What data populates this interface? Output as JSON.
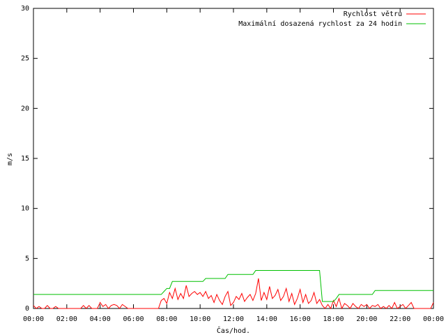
{
  "chart_data": {
    "type": "line",
    "xlabel": "Čas/hod.",
    "ylabel": "m/s",
    "x": [
      0,
      10,
      20,
      30,
      40,
      50,
      60,
      70,
      80,
      90,
      100,
      110,
      120,
      130,
      140,
      150,
      160,
      170,
      180,
      190,
      200,
      210,
      220,
      230,
      240,
      250,
      260,
      270,
      280,
      290,
      300,
      310,
      320,
      330,
      340,
      350,
      360,
      370,
      380,
      390,
      400,
      410,
      420,
      430,
      440,
      450,
      460,
      470,
      480,
      490,
      500,
      510,
      520,
      530,
      540,
      550,
      560,
      570,
      580,
      590,
      600,
      610,
      620,
      630,
      640,
      650,
      660,
      670,
      680,
      690,
      700,
      710,
      720,
      730,
      740,
      750,
      760,
      770,
      780,
      790,
      800,
      810,
      820,
      830,
      840,
      850,
      860,
      870,
      880,
      890,
      900,
      910,
      920,
      930,
      940,
      950,
      960,
      970,
      980,
      990,
      1000,
      1010,
      1020,
      1030,
      1040,
      1050,
      1060,
      1070,
      1080,
      1090,
      1100,
      1110,
      1120,
      1130,
      1140,
      1150,
      1160,
      1170,
      1180,
      1190,
      1200,
      1210,
      1220,
      1230,
      1240,
      1250,
      1260,
      1270,
      1280,
      1290,
      1300,
      1310,
      1320,
      1330,
      1340,
      1350,
      1360,
      1370,
      1380,
      1390,
      1400,
      1410,
      1420,
      1430,
      1440
    ],
    "series": [
      {
        "name": "Rychlost větru",
        "color": "#ff0000",
        "values": [
          0.3,
          0,
          0.2,
          0,
          0,
          0.3,
          0,
          0,
          0.2,
          0,
          0,
          0,
          0,
          0,
          0,
          0,
          0,
          0,
          0.3,
          0,
          0.3,
          0,
          0,
          0,
          0.6,
          0.2,
          0.4,
          0,
          0.3,
          0.4,
          0.3,
          0,
          0.4,
          0.2,
          0,
          0,
          0,
          0,
          0,
          0,
          0,
          0,
          0,
          0,
          0,
          0,
          0.8,
          1.0,
          0.5,
          1.6,
          1.0,
          2.0,
          0.9,
          1.5,
          1.0,
          2.3,
          1.2,
          1.5,
          1.7,
          1.4,
          1.6,
          1.2,
          1.7,
          1.0,
          1.3,
          0.6,
          1.4,
          0.8,
          0.4,
          1.2,
          1.7,
          0.3,
          0.6,
          1.2,
          0.9,
          1.5,
          0.7,
          1.1,
          1.4,
          0.8,
          1.5,
          3.0,
          0.8,
          1.6,
          0.9,
          2.2,
          1.0,
          1.3,
          1.9,
          0.8,
          1.2,
          2.0,
          0.7,
          1.5,
          0.4,
          1.0,
          1.9,
          0.6,
          1.4,
          0.5,
          0.8,
          1.6,
          0.5,
          0.9,
          0.3,
          0,
          0.4,
          0,
          0.8,
          0.2,
          1.0,
          0,
          0.5,
          0.3,
          0,
          0.5,
          0.2,
          0,
          0.4,
          0.2,
          0.4,
          0,
          0.3,
          0.2,
          0.4,
          0,
          0.2,
          0,
          0.3,
          0,
          0.6,
          0,
          0.2,
          0.4,
          0,
          0.3,
          0.6,
          0,
          0,
          0,
          0,
          0,
          0,
          0,
          0.6
        ]
      },
      {
        "name": "Maximální dosazená rychlost za 24 hodin",
        "color": "#00c000",
        "values": [
          1.4,
          1.4,
          1.4,
          1.4,
          1.4,
          1.4,
          1.4,
          1.4,
          1.4,
          1.4,
          1.4,
          1.4,
          1.4,
          1.4,
          1.4,
          1.4,
          1.4,
          1.4,
          1.4,
          1.4,
          1.4,
          1.4,
          1.4,
          1.4,
          1.4,
          1.4,
          1.4,
          1.4,
          1.4,
          1.4,
          1.4,
          1.4,
          1.4,
          1.4,
          1.4,
          1.4,
          1.4,
          1.4,
          1.4,
          1.4,
          1.4,
          1.4,
          1.4,
          1.4,
          1.4,
          1.4,
          1.4,
          1.7,
          2.0,
          2.0,
          2.7,
          2.7,
          2.7,
          2.7,
          2.7,
          2.7,
          2.7,
          2.7,
          2.7,
          2.7,
          2.7,
          2.7,
          3.0,
          3.0,
          3.0,
          3.0,
          3.0,
          3.0,
          3.0,
          3.0,
          3.4,
          3.4,
          3.4,
          3.4,
          3.4,
          3.4,
          3.4,
          3.4,
          3.4,
          3.4,
          3.8,
          3.8,
          3.8,
          3.8,
          3.8,
          3.8,
          3.8,
          3.8,
          3.8,
          3.8,
          3.8,
          3.8,
          3.8,
          3.8,
          3.8,
          3.8,
          3.8,
          3.8,
          3.8,
          3.8,
          3.8,
          3.8,
          3.8,
          3.8,
          0.7,
          0.7,
          0.7,
          0.7,
          0.7,
          1.0,
          1.4,
          1.4,
          1.4,
          1.4,
          1.4,
          1.4,
          1.4,
          1.4,
          1.4,
          1.4,
          1.4,
          1.4,
          1.4,
          1.8,
          1.8,
          1.8,
          1.8,
          1.8,
          1.8,
          1.8,
          1.8,
          1.8,
          1.8,
          1.8,
          1.8,
          1.8,
          1.8,
          1.8,
          1.8,
          1.8,
          1.8,
          1.8,
          1.8,
          1.8,
          1.8
        ]
      }
    ],
    "xlim": [
      0,
      1440
    ],
    "xticks": [
      {
        "value": 0,
        "label": "00:00"
      },
      {
        "value": 120,
        "label": "02:00"
      },
      {
        "value": 240,
        "label": "04:00"
      },
      {
        "value": 360,
        "label": "06:00"
      },
      {
        "value": 480,
        "label": "08:00"
      },
      {
        "value": 600,
        "label": "10:00"
      },
      {
        "value": 720,
        "label": "12:00"
      },
      {
        "value": 840,
        "label": "14:00"
      },
      {
        "value": 960,
        "label": "16:00"
      },
      {
        "value": 1080,
        "label": "18:00"
      },
      {
        "value": 1200,
        "label": "20:00"
      },
      {
        "value": 1320,
        "label": "22:00"
      },
      {
        "value": 1440,
        "label": "00:00"
      }
    ],
    "ylim": [
      0,
      30
    ],
    "yticks": [
      0,
      5,
      10,
      15,
      20,
      25,
      30
    ],
    "legend": "top-right"
  }
}
